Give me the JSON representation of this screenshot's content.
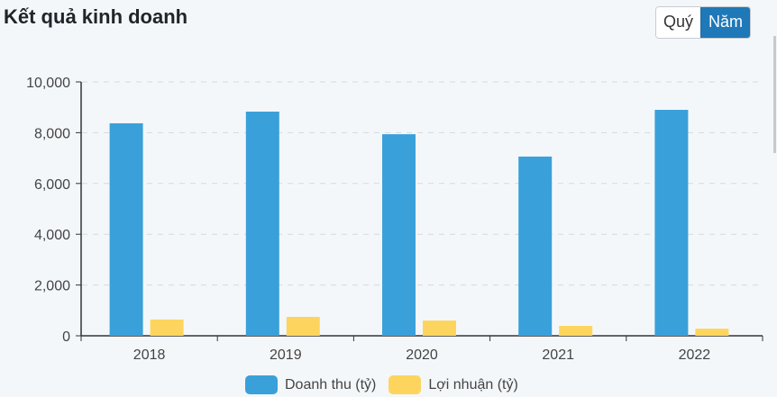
{
  "header": {
    "title": "Kết quả kinh doanh"
  },
  "toggle": {
    "options": [
      {
        "label": "Quý",
        "active": false
      },
      {
        "label": "Năm",
        "active": true
      }
    ]
  },
  "legend": [
    {
      "label": "Doanh thu (tỷ)",
      "color": "#3aa0da"
    },
    {
      "label": "Lợi nhuận (tỷ)",
      "color": "#fdd55e"
    }
  ],
  "chart_data": {
    "type": "bar",
    "title": "Kết quả kinh doanh",
    "categories": [
      "2018",
      "2019",
      "2020",
      "2021",
      "2022"
    ],
    "series": [
      {
        "name": "Doanh thu (tỷ)",
        "color": "#3aa0da",
        "values": [
          8370,
          8830,
          7940,
          7060,
          8900
        ]
      },
      {
        "name": "Lợi nhuận (tỷ)",
        "color": "#fdd55e",
        "values": [
          640,
          745,
          600,
          390,
          280
        ]
      }
    ],
    "xlabel": "",
    "ylabel": "",
    "ylim": [
      0,
      10000
    ],
    "yticks": [
      "0",
      "2,000",
      "4,000",
      "6,000",
      "8,000",
      "10,000"
    ],
    "grid": true,
    "legend_position": "bottom"
  }
}
